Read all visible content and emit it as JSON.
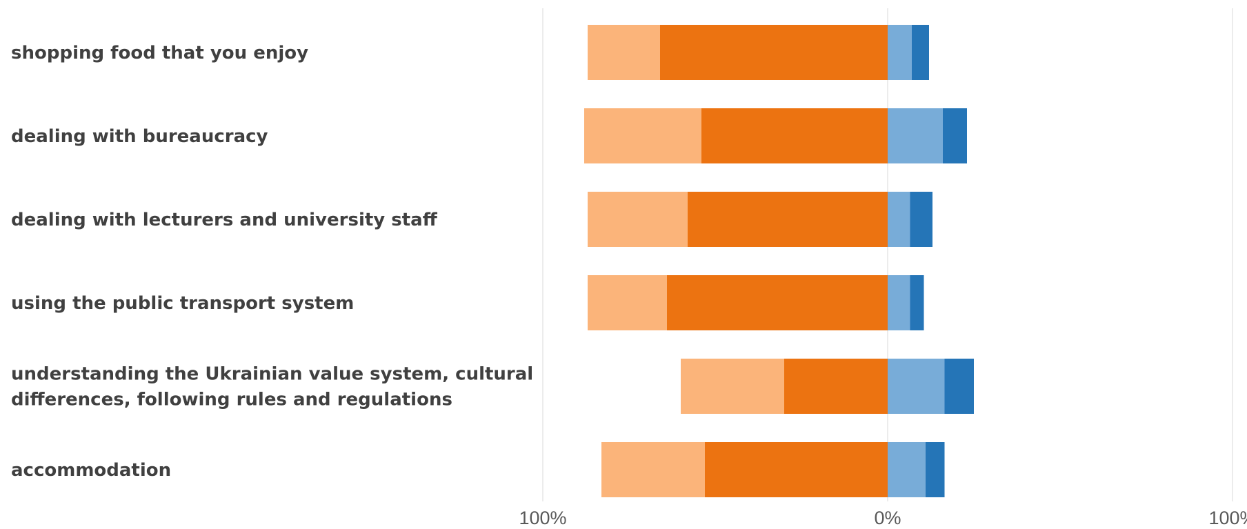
{
  "chart_data": {
    "type": "bar",
    "orientation": "horizontal",
    "stacked": "diverging",
    "categories": [
      [
        "shopping food that you enjoy"
      ],
      [
        "dealing with bureaucracy"
      ],
      [
        "dealing with lecturers and university staff"
      ],
      [
        "using the public transport system"
      ],
      [
        "understanding the Ukrainian value system, cultural",
        "differences, following rules and regulations"
      ],
      [
        "accommodation"
      ]
    ],
    "series": [
      {
        "side": "negative",
        "color": "#ec7311",
        "values": [
          -66,
          -54,
          -58,
          -64,
          -30,
          -53
        ]
      },
      {
        "side": "negative",
        "color": "#fbb47a",
        "values": [
          -21,
          -34,
          -29,
          -23,
          -30,
          -30
        ]
      },
      {
        "side": "positive",
        "color": "#78acd8",
        "values": [
          7,
          16,
          6.5,
          6.5,
          16.5,
          11
        ]
      },
      {
        "side": "positive",
        "color": "#2575b7",
        "values": [
          5,
          7,
          6.5,
          4,
          8.5,
          5.5
        ]
      }
    ],
    "xlim": [
      -100,
      100
    ],
    "x_ticks": [
      {
        "value": -100,
        "label": "100%"
      },
      {
        "value": 0,
        "label": "0%"
      },
      {
        "value": 100,
        "label": "100%"
      }
    ],
    "grid": true,
    "title": "",
    "xlabel": "",
    "ylabel": "",
    "legend": "none"
  }
}
